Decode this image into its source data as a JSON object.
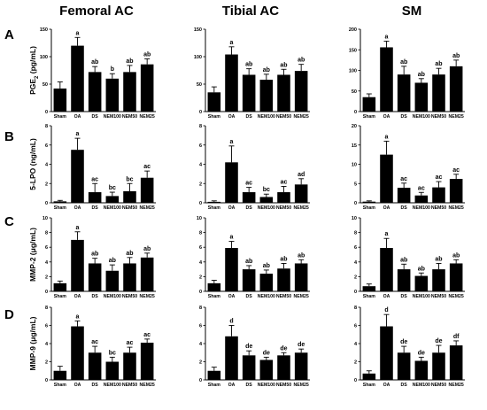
{
  "figure": {
    "column_titles": [
      "Femoral AC",
      "Tibial AC",
      "SM"
    ],
    "row_labels": [
      "A",
      "B",
      "C",
      "D"
    ]
  },
  "chart_data": [
    {
      "type": "bar",
      "row": 0,
      "col": 0,
      "ylabel": "PGE2 (pg/mL)",
      "ylabel_main": "PGE",
      "ylabel_sub": "2",
      "ylabel_rest": " (pg/mL)",
      "ylim": [
        0,
        150
      ],
      "yticks": [
        0,
        50,
        100,
        150
      ],
      "categories": [
        "Sham",
        "OA",
        "DS",
        "NEM100",
        "NEM50",
        "NEM25"
      ],
      "values": [
        42,
        120,
        72,
        60,
        72,
        86
      ],
      "errors": [
        12,
        15,
        10,
        9,
        12,
        10
      ],
      "letters": [
        "",
        "a",
        "ab",
        "b",
        "ab",
        "ab"
      ]
    },
    {
      "type": "bar",
      "row": 0,
      "col": 1,
      "ylabel": "",
      "ylim": [
        0,
        150
      ],
      "yticks": [
        0,
        50,
        100,
        150
      ],
      "categories": [
        "Sham",
        "OA",
        "DS",
        "NEM100",
        "NEM50",
        "NEM25"
      ],
      "values": [
        35,
        104,
        67,
        58,
        67,
        74
      ],
      "errors": [
        10,
        14,
        11,
        10,
        10,
        12
      ],
      "letters": [
        "",
        "a",
        "ab",
        "ab",
        "ab",
        "ab"
      ]
    },
    {
      "type": "bar",
      "row": 0,
      "col": 2,
      "ylabel": "",
      "ylim": [
        0,
        200
      ],
      "yticks": [
        0,
        50,
        100,
        150,
        200
      ],
      "categories": [
        "Sham",
        "OA",
        "DS",
        "NEM100",
        "NEM50",
        "NEM25"
      ],
      "values": [
        35,
        156,
        90,
        70,
        90,
        110
      ],
      "errors": [
        8,
        15,
        20,
        10,
        15,
        15
      ],
      "letters": [
        "",
        "a",
        "ab",
        "ab",
        "ab",
        "ab"
      ]
    },
    {
      "type": "bar",
      "row": 1,
      "col": 0,
      "ylabel": "5-LPO (ng/mL)",
      "ylim": [
        0,
        8
      ],
      "yticks": [
        0,
        2,
        4,
        6,
        8
      ],
      "categories": [
        "Sham",
        "OA",
        "DS",
        "NEM100",
        "NEM50",
        "NEM25"
      ],
      "values": [
        0.15,
        5.5,
        1.1,
        0.7,
        1.2,
        2.6
      ],
      "errors": [
        0.1,
        1.2,
        0.9,
        0.4,
        0.8,
        0.7
      ],
      "letters": [
        "",
        "a",
        "ac",
        "bc",
        "bc",
        "ac"
      ]
    },
    {
      "type": "bar",
      "row": 1,
      "col": 1,
      "ylabel": "",
      "ylim": [
        0,
        8
      ],
      "yticks": [
        0,
        2,
        4,
        6,
        8
      ],
      "categories": [
        "Sham",
        "OA",
        "DS",
        "NEM100",
        "NEM50",
        "NEM25"
      ],
      "values": [
        0.1,
        4.2,
        1.1,
        0.6,
        1.1,
        1.9
      ],
      "errors": [
        0.1,
        1.7,
        0.5,
        0.3,
        0.6,
        0.6
      ],
      "letters": [
        "",
        "a",
        "ac",
        "bc",
        "ac",
        "ad"
      ]
    },
    {
      "type": "bar",
      "row": 1,
      "col": 2,
      "ylabel": "",
      "ylim": [
        0,
        20
      ],
      "yticks": [
        0,
        5,
        10,
        15,
        20
      ],
      "categories": [
        "Sham",
        "OA",
        "DS",
        "NEM100",
        "NEM50",
        "NEM25"
      ],
      "values": [
        0.3,
        12.5,
        3.9,
        1.9,
        4.0,
        6.2
      ],
      "errors": [
        0.2,
        3.5,
        1.2,
        0.8,
        1.5,
        1.2
      ],
      "letters": [
        "",
        "a",
        "ac",
        "ac",
        "ac",
        "ac"
      ]
    },
    {
      "type": "bar",
      "row": 2,
      "col": 0,
      "ylabel": "MMP-2 (μg/mL)",
      "ylim": [
        0,
        10
      ],
      "yticks": [
        0,
        2,
        4,
        6,
        8,
        10
      ],
      "categories": [
        "Sham",
        "OA",
        "DS",
        "NEM100",
        "NEM50",
        "NEM25"
      ],
      "values": [
        1.1,
        7.0,
        3.8,
        2.8,
        3.8,
        4.6
      ],
      "errors": [
        0.3,
        1.1,
        0.7,
        0.8,
        0.8,
        0.6
      ],
      "letters": [
        "",
        "a",
        "ab",
        "ab",
        "ab",
        "ab"
      ]
    },
    {
      "type": "bar",
      "row": 2,
      "col": 1,
      "ylabel": "",
      "ylim": [
        0,
        10
      ],
      "yticks": [
        0,
        2,
        4,
        6,
        8,
        10
      ],
      "categories": [
        "Sham",
        "OA",
        "DS",
        "NEM100",
        "NEM50",
        "NEM25"
      ],
      "values": [
        1.1,
        5.9,
        3.0,
        2.4,
        3.1,
        3.8
      ],
      "errors": [
        0.4,
        0.9,
        0.5,
        0.5,
        0.7,
        0.5
      ],
      "letters": [
        "",
        "a",
        "ab",
        "ab",
        "ab",
        "ab"
      ]
    },
    {
      "type": "bar",
      "row": 2,
      "col": 2,
      "ylabel": "",
      "ylim": [
        0,
        10
      ],
      "yticks": [
        0,
        2,
        4,
        6,
        8,
        10
      ],
      "categories": [
        "Sham",
        "OA",
        "DS",
        "NEM100",
        "NEM50",
        "NEM25"
      ],
      "values": [
        0.7,
        5.9,
        3.0,
        2.1,
        3.0,
        3.8
      ],
      "errors": [
        0.3,
        1.3,
        0.7,
        0.4,
        0.8,
        0.5
      ],
      "letters": [
        "",
        "a",
        "ab",
        "ab",
        "ab",
        "ab"
      ]
    },
    {
      "type": "bar",
      "row": 3,
      "col": 0,
      "ylabel": "MMP-9 (μg/mL)",
      "ylim": [
        0,
        8
      ],
      "yticks": [
        0,
        2,
        4,
        6,
        8
      ],
      "categories": [
        "Sham",
        "OA",
        "DS",
        "NEM100",
        "NEM50",
        "NEM25"
      ],
      "values": [
        1.0,
        5.9,
        3.0,
        2.0,
        3.0,
        4.1
      ],
      "errors": [
        0.5,
        0.6,
        0.7,
        0.5,
        0.6,
        0.4
      ],
      "letters": [
        "",
        "a",
        "ac",
        "bc",
        "ac",
        "ac"
      ]
    },
    {
      "type": "bar",
      "row": 3,
      "col": 1,
      "ylabel": "",
      "ylim": [
        0,
        8
      ],
      "yticks": [
        0,
        2,
        4,
        6,
        8
      ],
      "categories": [
        "Sham",
        "OA",
        "DS",
        "NEM100",
        "NEM50",
        "NEM25"
      ],
      "values": [
        1.0,
        4.8,
        2.7,
        2.2,
        2.7,
        3.0
      ],
      "errors": [
        0.4,
        1.2,
        0.5,
        0.3,
        0.3,
        0.4
      ],
      "letters": [
        "",
        "d",
        "de",
        "de",
        "de",
        "de"
      ]
    },
    {
      "type": "bar",
      "row": 3,
      "col": 2,
      "ylabel": "",
      "ylim": [
        0,
        8
      ],
      "yticks": [
        0,
        2,
        4,
        6,
        8
      ],
      "categories": [
        "Sham",
        "OA",
        "DS",
        "NEM100",
        "NEM50",
        "NEM25"
      ],
      "values": [
        0.7,
        5.9,
        3.0,
        2.1,
        3.0,
        3.8
      ],
      "errors": [
        0.3,
        1.3,
        0.7,
        0.4,
        0.8,
        0.5
      ],
      "letters": [
        "",
        "d",
        "de",
        "de",
        "de",
        "df"
      ]
    }
  ]
}
